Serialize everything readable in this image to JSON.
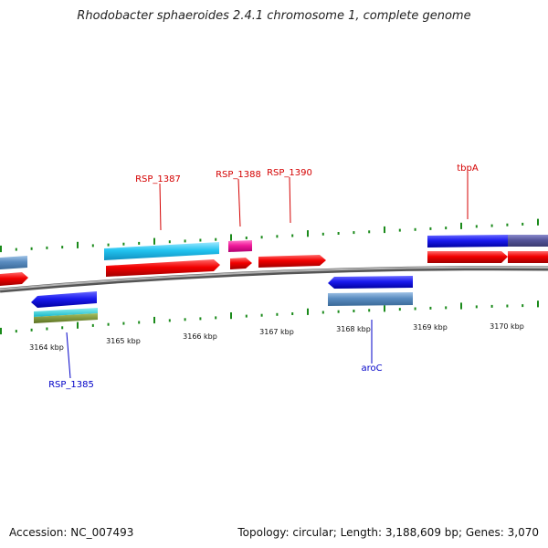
{
  "title": "Rhodobacter sphaeroides 2.4.1 chromosome 1, complete genome",
  "footer": {
    "accession": "Accession: NC_007493",
    "topology": "Topology: circular; Length: 3,188,609 bp; Genes: 3,070"
  },
  "colors": {
    "label_forward": "#d40000",
    "label_reverse": "#0000c8",
    "backbone": "#8a8a8a",
    "tick": "#1a8a1a"
  },
  "axis": {
    "unit": "kbp",
    "ticks": [
      {
        "value": 3164,
        "label": "3164 kbp"
      },
      {
        "value": 3165,
        "label": "3165 kbp"
      },
      {
        "value": 3166,
        "label": "3166 kbp"
      },
      {
        "value": 3167,
        "label": "3167 kbp"
      },
      {
        "value": 3168,
        "label": "3168 kbp"
      },
      {
        "value": 3169,
        "label": "3169 kbp"
      },
      {
        "value": 3170,
        "label": "3170 kbp"
      }
    ]
  },
  "labels": [
    {
      "name": "RSP_1387",
      "strand": "forward"
    },
    {
      "name": "RSP_1388",
      "strand": "forward"
    },
    {
      "name": "RSP_1390",
      "strand": "forward"
    },
    {
      "name": "tbpA",
      "strand": "forward"
    },
    {
      "name": "RSP_1385",
      "strand": "reverse"
    },
    {
      "name": "aroC",
      "strand": "reverse"
    }
  ]
}
